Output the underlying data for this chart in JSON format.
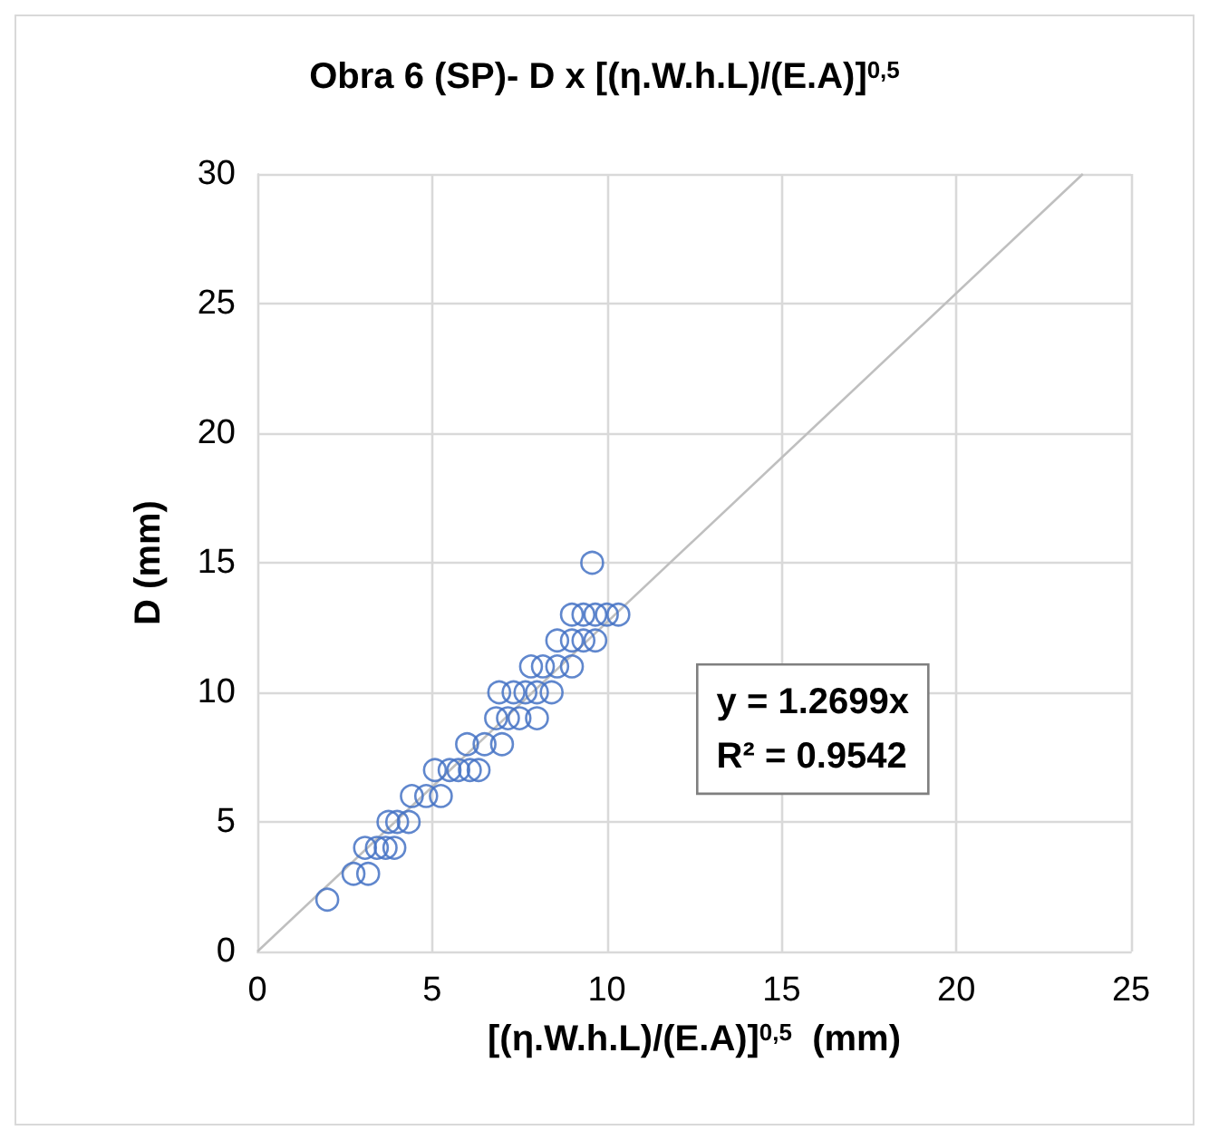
{
  "chart_data": {
    "type": "scatter",
    "title": "Obra 6 (SP)- D x [(η.W.h.L)/(E.A)]$^{0,5}$",
    "xlabel": "[(η.W.h.L)/(E.A)]$^{0,5}$  (mm)",
    "ylabel": "D (mm)",
    "xlim": [
      0,
      25
    ],
    "xticks": [
      0,
      5,
      10,
      15,
      20,
      25
    ],
    "ylim": [
      0,
      30
    ],
    "yticks": [
      0,
      5,
      10,
      15,
      20,
      25,
      30
    ],
    "grid": true,
    "marker": "circle",
    "annotations": [
      "y = 1.2699x",
      "R² = 0.9542"
    ],
    "series": [
      {
        "color": "#4472c4",
        "x": [
          2.0,
          2.75,
          3.17,
          3.08,
          3.42,
          3.67,
          3.92,
          3.75,
          4.0,
          4.33,
          4.42,
          4.83,
          5.25,
          5.08,
          5.5,
          5.75,
          6.08,
          6.33,
          6.0,
          6.5,
          7.0,
          6.83,
          7.17,
          7.5,
          8.0,
          6.92,
          7.33,
          7.67,
          8.0,
          8.42,
          7.83,
          8.17,
          8.58,
          9.0,
          8.58,
          9.0,
          9.33,
          9.67,
          9.0,
          9.33,
          9.67,
          10.0,
          10.33,
          9.58
        ],
        "values": [
          2,
          3,
          3,
          4,
          4,
          4,
          4,
          5,
          5,
          5,
          6,
          6,
          6,
          7,
          7,
          7,
          7,
          7,
          8,
          8,
          8,
          9,
          9,
          9,
          9,
          10,
          10,
          10,
          10,
          10,
          11,
          11,
          11,
          11,
          12,
          12,
          12,
          12,
          13,
          13,
          13,
          13,
          13,
          15
        ]
      },
      {
        "type": "line",
        "color": "#bfbfbf",
        "x": [
          0,
          23.62
        ],
        "values": [
          0,
          30
        ],
        "marker": "none"
      }
    ]
  }
}
